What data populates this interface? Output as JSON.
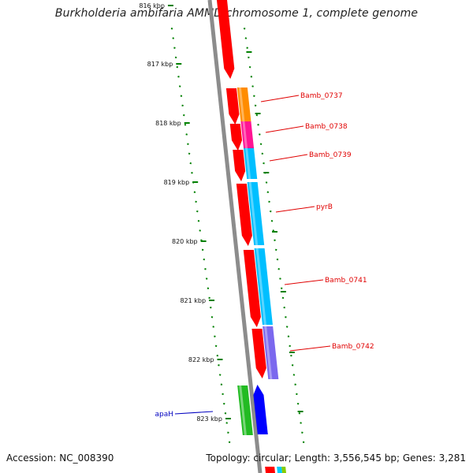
{
  "title": "Burkholderia ambifaria AMMD chromosome 1, complete genome",
  "footer": {
    "accession": "Accession: NC_008390",
    "summary": "Topology: circular; Length: 3,556,545 bp; Genes: 3,281"
  },
  "colors": {
    "backbone": "#8c8c8c",
    "cds": "#ff0000",
    "tick": "#008000",
    "label_red": "#e00000",
    "label_blue": "#0000c0"
  },
  "scale": {
    "unit": "kbp",
    "ticks": [
      "816 kbp",
      "817 kbp",
      "818 kbp",
      "819 kbp",
      "820 kbp",
      "821 kbp",
      "822 kbp",
      "823 kbp"
    ]
  },
  "genes": [
    {
      "name": "Bamb_0737",
      "color": "#ff8c00",
      "strand": "forward"
    },
    {
      "name": "Bamb_0738",
      "color": "#ff1493",
      "strand": "forward"
    },
    {
      "name": "Bamb_0739",
      "color": "#00bfff",
      "strand": "forward"
    },
    {
      "name": "pyrB",
      "color": "#00bfff",
      "strand": "forward"
    },
    {
      "name": "Bamb_0741",
      "color": "#00bfff",
      "strand": "forward"
    },
    {
      "name": "Bamb_0742",
      "color": "#7b68ee",
      "strand": "forward"
    },
    {
      "name": "apaH",
      "color": "#0000ff",
      "strand": "reverse"
    }
  ]
}
